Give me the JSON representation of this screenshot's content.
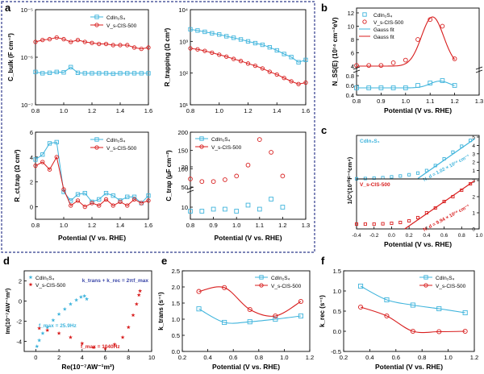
{
  "figure": {
    "panel_letters": [
      "a",
      "b",
      "c",
      "d",
      "e",
      "f"
    ],
    "colors": {
      "blue": "#3fb4dc",
      "red": "#d81e1e",
      "frame": "#2e3a8c"
    }
  },
  "chart_data": [
    {
      "panel": "a",
      "type": "line",
      "log_y": true,
      "ylabel": "C_bulk (F cm⁻²)",
      "xlabel": "",
      "xlim": [
        0.8,
        1.6
      ],
      "ylim": [
        1e-07,
        1e-05
      ],
      "x_ticks": [
        "0.8",
        "1.0",
        "1.2",
        "1.4",
        "1.6"
      ],
      "y_ticks": [
        "10⁻⁷",
        "10⁻⁶",
        "10⁻⁵"
      ],
      "legend": {
        "position": "top-right",
        "entries": [
          "CdIn₂S₄",
          "V_s-CIS-500"
        ]
      },
      "x": [
        0.8,
        0.85,
        0.9,
        0.95,
        1.0,
        1.05,
        1.1,
        1.15,
        1.2,
        1.25,
        1.3,
        1.35,
        1.4,
        1.45,
        1.5,
        1.55,
        1.6
      ],
      "series": [
        {
          "name": "CdIn₂S₄",
          "color": "blue",
          "marker": "square",
          "values": [
            4.9e-07,
            4.6e-07,
            4.7e-07,
            4.9e-07,
            4.8e-07,
            6.2e-07,
            4.7e-07,
            4.6e-07,
            4.6e-07,
            4.6e-07,
            4.6e-07,
            4.5e-07,
            4.6e-07,
            4.6e-07,
            4.6e-07,
            4.6e-07,
            4.6e-07
          ]
        },
        {
          "name": "V_s-CIS-500",
          "color": "red",
          "marker": "circle",
          "values": [
            2.1e-06,
            2.3e-06,
            2.4e-06,
            2.6e-06,
            2.4e-06,
            2.1e-06,
            2.3e-06,
            2.1e-06,
            2e-06,
            1.9e-06,
            1.9e-06,
            1.8e-06,
            1.8e-06,
            1.8e-06,
            1.6e-06,
            1.5e-06,
            1.6e-06
          ]
        }
      ]
    },
    {
      "panel": "a",
      "type": "line",
      "log_y": true,
      "ylabel": "R_trapping (Ω cm²)",
      "xlabel": "",
      "xlim": [
        0.8,
        1.6
      ],
      "ylim": [
        10,
        10000
      ],
      "x_ticks": [
        "0.8",
        "1.0",
        "1.2",
        "1.4",
        "1.6"
      ],
      "y_ticks": [
        "10¹",
        "10²",
        "10³",
        "10⁴"
      ],
      "legend": null,
      "x": [
        0.8,
        0.85,
        0.9,
        0.95,
        1.0,
        1.05,
        1.1,
        1.15,
        1.2,
        1.25,
        1.3,
        1.35,
        1.4,
        1.45,
        1.5,
        1.55,
        1.6
      ],
      "series": [
        {
          "name": "CdIn₂S₄",
          "color": "blue",
          "marker": "square",
          "values": [
            2400,
            2200,
            2000,
            1800,
            1650,
            1450,
            1300,
            1150,
            1000,
            880,
            780,
            650,
            520,
            400,
            320,
            220,
            260
          ]
        },
        {
          "name": "V_s-CIS-500",
          "color": "red",
          "marker": "circle",
          "values": [
            600,
            560,
            500,
            440,
            380,
            330,
            280,
            240,
            200,
            170,
            140,
            110,
            90,
            70,
            55,
            45,
            50
          ]
        }
      ]
    },
    {
      "panel": "a",
      "type": "line",
      "log_y": false,
      "ylabel": "R_ct,trap (Ω cm²)",
      "xlabel": "Potential (V vs. RHE)",
      "xlim": [
        0.8,
        1.6
      ],
      "ylim": [
        -1,
        6
      ],
      "x_ticks": [
        "0.8",
        "1.0",
        "1.2",
        "1.4",
        "1.6"
      ],
      "y_ticks": [
        "0",
        "2",
        "4",
        "6"
      ],
      "legend": {
        "position": "top-right",
        "entries": [
          "CdIn₂S₄",
          "V_s-CIS-500"
        ]
      },
      "x": [
        0.8,
        0.85,
        0.9,
        0.95,
        1.0,
        1.05,
        1.1,
        1.15,
        1.2,
        1.25,
        1.3,
        1.35,
        1.4,
        1.45,
        1.5,
        1.55,
        1.6
      ],
      "series": [
        {
          "name": "CdIn₂S₄",
          "color": "blue",
          "marker": "square",
          "values": [
            3.8,
            4.2,
            5.1,
            5.2,
            1.2,
            0.5,
            1.0,
            1.1,
            0.4,
            0.6,
            1.1,
            0.9,
            0.5,
            0.8,
            0.8,
            0.3,
            0.9
          ]
        },
        {
          "name": "V_s-CIS-500",
          "color": "red",
          "marker": "circle",
          "values": [
            3.3,
            3.6,
            3.0,
            4.0,
            1.4,
            0.1,
            0.5,
            0.0,
            0.3,
            0.1,
            0.6,
            0.1,
            0.4,
            0.1,
            0.6,
            0.3,
            0.5
          ]
        }
      ]
    },
    {
      "panel": "a",
      "type": "scatter",
      "log_y": false,
      "ylabel": "C_trap (μF cm⁻²)",
      "xlabel": "Potential (V vs. RHE)",
      "xlim": [
        0.8,
        1.3
      ],
      "ylim": [
        0,
        200
      ],
      "axis_break_y": true,
      "x_ticks": [
        "0.8",
        "0.9",
        "1.0",
        "1.1",
        "1.2",
        "1.3"
      ],
      "y_ticks": [
        "10",
        "20",
        "50",
        "100",
        "150",
        "200"
      ],
      "legend": {
        "position": "top-left",
        "entries": [
          "CdIn₂S₄",
          "V_s-CIS-500"
        ]
      },
      "x": [
        0.8,
        0.85,
        0.9,
        0.95,
        1.0,
        1.05,
        1.1,
        1.15,
        1.2
      ],
      "series": [
        {
          "name": "CdIn₂S₄",
          "color": "blue",
          "marker": "square",
          "values": [
            9,
            9,
            9.5,
            9.5,
            9,
            10.5,
            9.5,
            12,
            10
          ]
        },
        {
          "name": "V_s-CIS-500",
          "color": "red",
          "marker": "circle",
          "values": [
            72,
            65,
            65,
            70,
            80,
            110,
            180,
            145,
            80
          ]
        }
      ]
    },
    {
      "panel": "b",
      "type": "scatter",
      "log_y": false,
      "ylabel": "N_SS(E) (10¹⁴ cm⁻²eV)",
      "xlabel": "Potential (V vs. RHE)",
      "xlim": [
        0.8,
        1.3
      ],
      "ylim": [
        0.4,
        12
      ],
      "axis_break_y": true,
      "x_ticks": [
        "0.8",
        "0.9",
        "1.0",
        "1.1",
        "1.2",
        "1.3"
      ],
      "y_ticks_top": [
        "4",
        "6",
        "8",
        "10",
        "12"
      ],
      "y_ticks_bottom": [
        "0.4",
        "0.6",
        "0.8"
      ],
      "legend": {
        "position": "top-left",
        "entries": [
          "CdIn₂S₄",
          "V_s-CIS-500",
          "Gauss fit",
          "Gauss fit"
        ]
      },
      "x": [
        0.8,
        0.85,
        0.9,
        0.95,
        1.0,
        1.05,
        1.1,
        1.15,
        1.2
      ],
      "series": [
        {
          "name": "CdIn₂S₄",
          "color": "blue",
          "marker": "square",
          "values": [
            0.55,
            0.55,
            0.55,
            0.55,
            0.55,
            0.6,
            0.65,
            0.7,
            0.6
          ]
        },
        {
          "name": "V_s-CIS-500",
          "color": "red",
          "marker": "circle",
          "values": [
            4.1,
            4.1,
            4.1,
            4.5,
            4.9,
            8.0,
            11.0,
            10.0,
            5.1
          ]
        }
      ],
      "fits": [
        {
          "name": "Gauss fit",
          "color": "blue",
          "baseline": 0.55,
          "amp": 0.14,
          "center": 1.14,
          "width": 0.04
        },
        {
          "name": "Gauss fit",
          "color": "red",
          "baseline": 4.0,
          "amp": 7.4,
          "center": 1.11,
          "width": 0.045
        }
      ]
    },
    {
      "panel": "c",
      "type": "line",
      "log_y": false,
      "ylabel": "1/C²(10¹⁰F⁻²cm⁴)",
      "xlabel": "Potential (V vs. RHE)",
      "xlim": [
        -0.4,
        1.0
      ],
      "x_ticks": [
        "-0.4",
        "-0.2",
        "0.0",
        "0.2",
        "0.4",
        "0.6",
        "0.8",
        "1.0"
      ],
      "subpanels": [
        {
          "label": "CdIn₂S₄",
          "color": "blue",
          "ylim": [
            0,
            5
          ],
          "y_ticks": [
            "0",
            "1",
            "2",
            "3",
            "4",
            "5"
          ],
          "annotation": "N_d = 1.02 × 10¹⁸ cm⁻³",
          "x": [
            -0.4,
            -0.3,
            -0.2,
            -0.1,
            0.0,
            0.1,
            0.2,
            0.3,
            0.4,
            0.5,
            0.6,
            0.7,
            0.8,
            0.9
          ],
          "values": [
            0.02,
            0.05,
            0.1,
            0.15,
            0.25,
            0.35,
            0.5,
            0.7,
            1.0,
            1.6,
            2.4,
            3.2,
            3.9,
            4.6
          ],
          "fit": {
            "x": [
              0.3,
              0.95
            ],
            "y": [
              0.05,
              4.8
            ]
          }
        },
        {
          "label": "V_s-CIS-500",
          "color": "red",
          "ylim": [
            0,
            3
          ],
          "y_ticks": [
            "0",
            "1",
            "2",
            "3"
          ],
          "annotation": "N_d = 9.94 × 10¹⁸ cm⁻³",
          "x": [
            -0.4,
            -0.3,
            -0.2,
            -0.1,
            0.0,
            0.1,
            0.2,
            0.3,
            0.4,
            0.5,
            0.6,
            0.7,
            0.8,
            0.9
          ],
          "values": [
            0.3,
            0.3,
            0.3,
            0.32,
            0.35,
            0.4,
            0.5,
            0.7,
            1.0,
            1.3,
            1.7,
            2.0,
            2.4,
            2.8
          ],
          "fit": {
            "x": [
              0.15,
              0.95
            ],
            "y": [
              0.0,
              3.0
            ]
          }
        }
      ]
    },
    {
      "panel": "d",
      "type": "scatter",
      "log_y": false,
      "ylabel": "Im(10⁻⁷AW⁻¹m²)",
      "xlabel": "Re(10⁻⁷AW⁻¹m²)",
      "xlim": [
        -1,
        10
      ],
      "ylim": [
        -5,
        3
      ],
      "x_ticks": [
        "0",
        "2",
        "4",
        "6",
        "8",
        "10"
      ],
      "y_ticks": [
        "-4",
        "-2",
        "0",
        "2"
      ],
      "legend": {
        "position": "top-left",
        "entries": [
          "CdIn₂S₄",
          "V_s-CIS-500"
        ]
      },
      "annotations": [
        "k_trans + k_rec = 2πf_max",
        "f_max = 25.9Hz",
        "f_max = 1040Hz"
      ],
      "series": [
        {
          "name": "CdIn₂S₄",
          "color": "blue",
          "marker": "star",
          "x": [
            0.1,
            0.3,
            0.6,
            1.0,
            1.5,
            2.0,
            2.5,
            3.0,
            3.5,
            3.9,
            4.2,
            4.4
          ],
          "y": [
            -4.5,
            -3.9,
            -3.2,
            -2.6,
            -1.9,
            -1.3,
            -0.8,
            -0.3,
            0.1,
            0.4,
            0.5,
            0.2
          ]
        },
        {
          "name": "V_s-CIS-500",
          "color": "red",
          "marker": "star",
          "x": [
            0.3,
            1.0,
            2.0,
            3.0,
            4.0,
            5.0,
            6.0,
            6.8,
            7.5,
            8.0,
            8.4,
            8.7,
            8.9,
            9.0
          ],
          "y": [
            -2.7,
            -2.9,
            -3.2,
            -3.6,
            -4.2,
            -4.6,
            -4.7,
            -4.3,
            -3.6,
            -2.6,
            -1.4,
            -0.3,
            0.6,
            1.0
          ]
        }
      ]
    },
    {
      "panel": "e",
      "type": "line",
      "log_y": false,
      "ylabel": "k_trans (s⁻¹)",
      "xlabel": "Potential (V vs. RHE)",
      "xlim": [
        0.2,
        1.2
      ],
      "ylim": [
        0,
        2.5
      ],
      "x_ticks": [
        "0.2",
        "0.4",
        "0.6",
        "0.8",
        "1.0",
        "1.2"
      ],
      "y_ticks": [
        "0.0",
        "0.5",
        "1.0",
        "1.5",
        "2.0",
        "2.5"
      ],
      "legend": {
        "position": "top-right",
        "entries": [
          "CdIn₂S₄",
          "V_s-CIS-500"
        ]
      },
      "x": [
        0.33,
        0.53,
        0.73,
        0.93,
        1.13
      ],
      "series": [
        {
          "name": "CdIn₂S₄",
          "color": "blue",
          "marker": "square",
          "values": [
            1.32,
            0.9,
            0.92,
            1.0,
            1.1
          ]
        },
        {
          "name": "V_s-CIS-500",
          "color": "red",
          "marker": "circle",
          "values": [
            1.86,
            1.98,
            1.3,
            1.1,
            1.55
          ]
        }
      ]
    },
    {
      "panel": "f",
      "type": "line",
      "log_y": false,
      "ylabel": "k_rec (s⁻¹)",
      "xlabel": "Potential (V vs. RHE)",
      "xlim": [
        0.2,
        1.2
      ],
      "ylim": [
        -0.5,
        1.5
      ],
      "x_ticks": [
        "0.2",
        "0.4",
        "0.6",
        "0.8",
        "1.0",
        "1.2"
      ],
      "y_ticks": [
        "-0.5",
        "0.0",
        "0.5",
        "1.0",
        "1.5"
      ],
      "legend": {
        "position": "top-right",
        "entries": [
          "CdIn₂S₄",
          "V_s-CIS-500"
        ]
      },
      "x": [
        0.33,
        0.53,
        0.73,
        0.93,
        1.13
      ],
      "series": [
        {
          "name": "CdIn₂S₄",
          "color": "blue",
          "marker": "square",
          "values": [
            1.12,
            0.78,
            0.65,
            0.56,
            0.46
          ]
        },
        {
          "name": "V_s-CIS-500",
          "color": "red",
          "marker": "circle",
          "values": [
            0.6,
            0.38,
            0.0,
            -0.01,
            0.0
          ]
        }
      ]
    }
  ]
}
